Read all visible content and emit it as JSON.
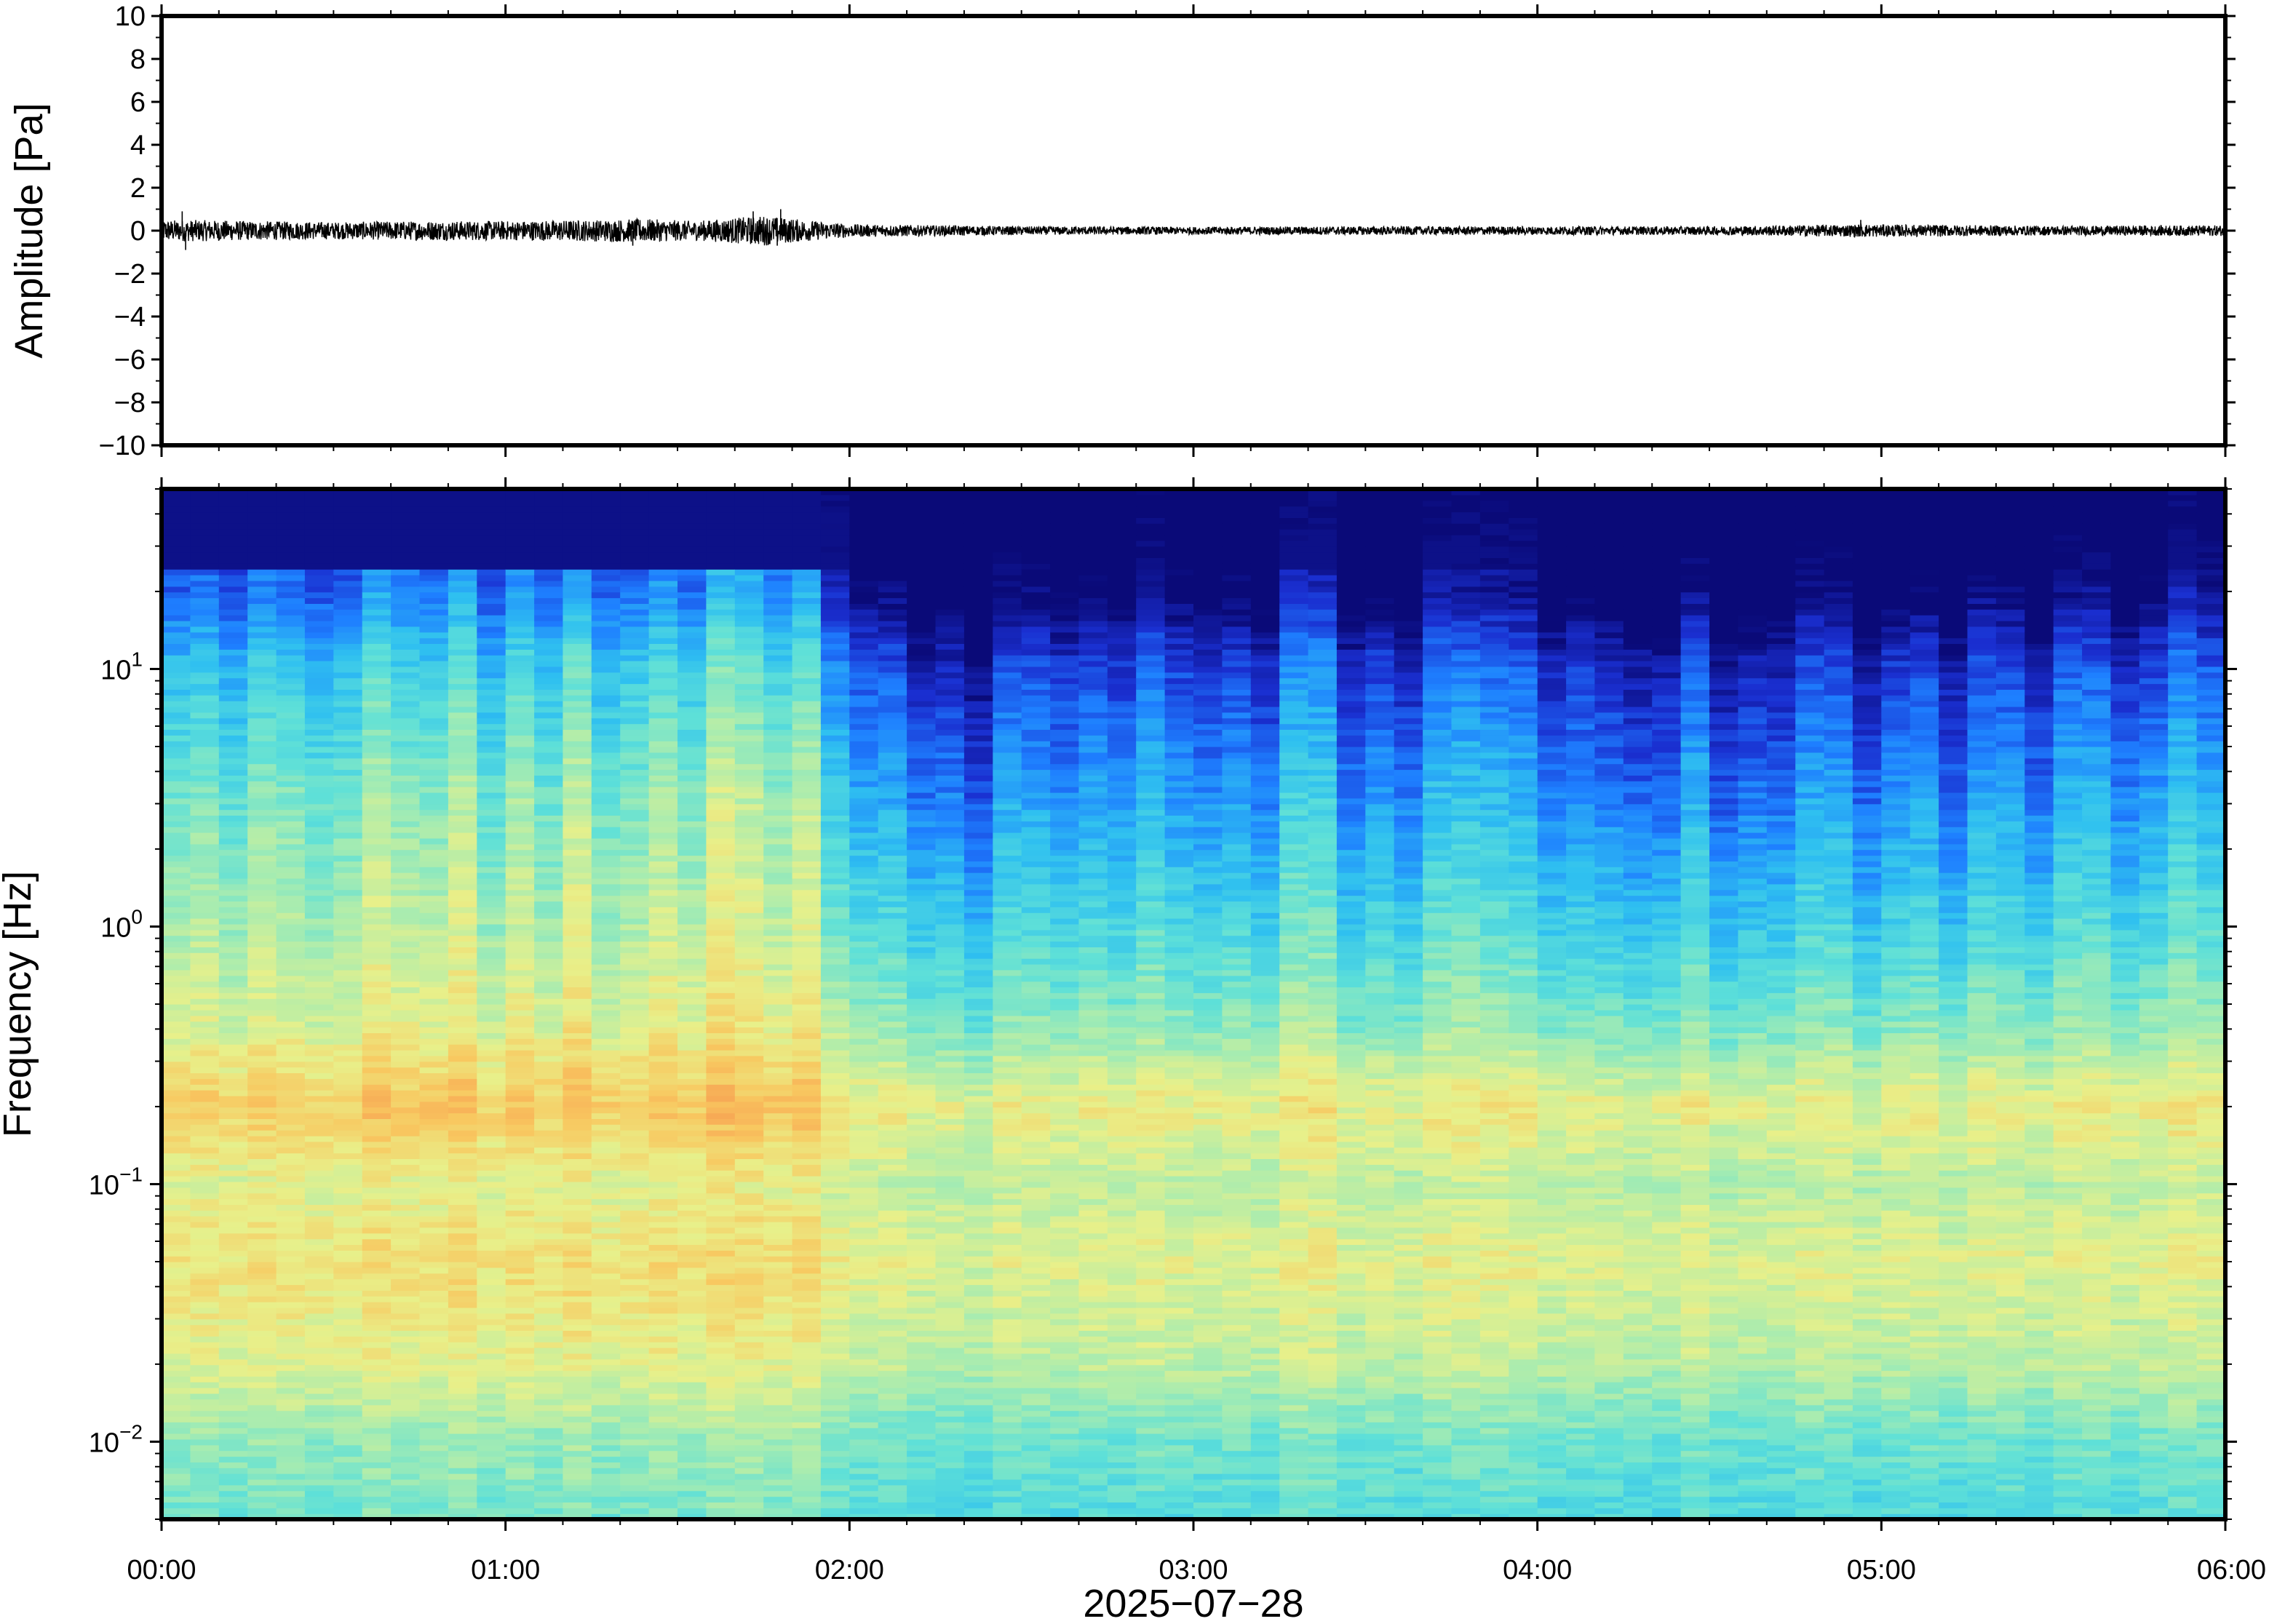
{
  "chart_data": [
    {
      "type": "line",
      "panel": "waveform",
      "ylabel": "Amplitude [Pa]",
      "ylim": [
        -10,
        10
      ],
      "yticks": [
        -10,
        -8,
        -6,
        -4,
        -2,
        0,
        2,
        4,
        6,
        8,
        10
      ],
      "ytick_labels": [
        "−10",
        "−8",
        "−6",
        "−4",
        "−2",
        "0",
        "2",
        "4",
        "6",
        "8",
        "10"
      ],
      "xlim": [
        "00:00",
        "06:00"
      ],
      "series": [
        {
          "color": "#000000",
          "envelope": [
            {
              "x": 0.0,
              "amp": 0.5
            },
            {
              "x": 0.1,
              "amp": 0.5
            },
            {
              "x": 0.25,
              "amp": 0.45
            },
            {
              "x": 0.5,
              "amp": 0.4
            },
            {
              "x": 0.75,
              "amp": 0.45
            },
            {
              "x": 1.0,
              "amp": 0.45
            },
            {
              "x": 1.25,
              "amp": 0.5
            },
            {
              "x": 1.4,
              "amp": 0.55
            },
            {
              "x": 1.55,
              "amp": 0.45
            },
            {
              "x": 1.75,
              "amp": 0.7
            },
            {
              "x": 1.9,
              "amp": 0.45
            },
            {
              "x": 2.0,
              "amp": 0.3
            },
            {
              "x": 2.5,
              "amp": 0.2
            },
            {
              "x": 3.0,
              "amp": 0.18
            },
            {
              "x": 3.5,
              "amp": 0.2
            },
            {
              "x": 4.0,
              "amp": 0.2
            },
            {
              "x": 4.5,
              "amp": 0.2
            },
            {
              "x": 4.95,
              "amp": 0.3
            },
            {
              "x": 5.5,
              "amp": 0.22
            },
            {
              "x": 6.0,
              "amp": 0.25
            }
          ],
          "spikes": [
            {
              "x": 0.06,
              "y": 0.9
            },
            {
              "x": 0.07,
              "y": -0.9
            },
            {
              "x": 1.37,
              "y": -0.7
            },
            {
              "x": 1.72,
              "y": 0.9
            },
            {
              "x": 1.8,
              "y": 1.0
            },
            {
              "x": 1.79,
              "y": -0.7
            },
            {
              "x": 4.94,
              "y": 0.5
            }
          ]
        }
      ]
    },
    {
      "type": "heatmap",
      "panel": "spectrogram",
      "ylabel": "Frequency [Hz]",
      "xlabel": "2025−07−28",
      "yscale": "log",
      "ylim": [
        0.005,
        50
      ],
      "yticks": [
        {
          "base": "10",
          "exp": "−2",
          "value": 0.01
        },
        {
          "base": "10",
          "exp": "−1",
          "value": 0.1
        },
        {
          "base": "10",
          "exp": "0",
          "value": 1
        },
        {
          "base": "10",
          "exp": "1",
          "value": 10
        }
      ],
      "xticks": [
        "00:00",
        "01:00",
        "02:00",
        "03:00",
        "04:00",
        "05:00",
        "06:00"
      ],
      "colormap": [
        "#0a0a78",
        "#1a2fd0",
        "#1e7fff",
        "#2fc0f0",
        "#5ee0d8",
        "#a8ecb0",
        "#e8f08a",
        "#f8c860",
        "#f79a50",
        "#ec5a46"
      ],
      "intensity_profile_by_frequency": [
        {
          "hz": 0.005,
          "level": 0.45
        },
        {
          "hz": 0.01,
          "level": 0.5
        },
        {
          "hz": 0.02,
          "level": 0.62
        },
        {
          "hz": 0.05,
          "level": 0.68
        },
        {
          "hz": 0.1,
          "level": 0.62
        },
        {
          "hz": 0.2,
          "level": 0.72
        },
        {
          "hz": 0.4,
          "level": 0.58
        },
        {
          "hz": 1,
          "level": 0.48
        },
        {
          "hz": 3,
          "level": 0.38
        },
        {
          "hz": 10,
          "level": 0.24
        },
        {
          "hz": 20,
          "level": 0.08
        },
        {
          "hz": 50,
          "level": 0.0
        }
      ],
      "intensity_offset_by_time": [
        {
          "t": 0.0,
          "offset": 0.1
        },
        {
          "t": 1.0,
          "offset": 0.1
        },
        {
          "t": 1.85,
          "offset": 0.12
        },
        {
          "t": 2.05,
          "offset": -0.05
        },
        {
          "t": 2.4,
          "offset": -0.1
        },
        {
          "t": 3.4,
          "offset": -0.04
        },
        {
          "t": 4.0,
          "offset": -0.08
        },
        {
          "t": 4.8,
          "offset": -0.1
        },
        {
          "t": 5.5,
          "offset": -0.09
        },
        {
          "t": 6.0,
          "offset": -0.03
        }
      ]
    }
  ]
}
